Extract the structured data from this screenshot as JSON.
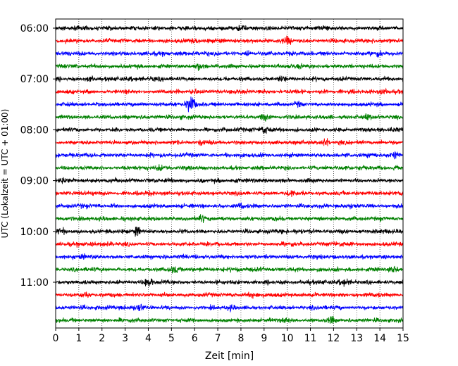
{
  "chart_data": {
    "type": "line",
    "title": "",
    "xlabel": "Zeit  [min]",
    "ylabel": "UTC (Lokalzeit = UTC + 01:00)",
    "xlim": [
      0,
      15
    ],
    "x_ticks": [
      "0",
      "1",
      "2",
      "3",
      "4",
      "5",
      "6",
      "7",
      "8",
      "9",
      "10",
      "11",
      "12",
      "13",
      "14",
      "15"
    ],
    "y_ticks": [
      "06:00",
      "07:00",
      "08:00",
      "09:00",
      "10:00",
      "11:00"
    ],
    "grid": "vertical dotted at each minute",
    "trace_interval_minutes": 15,
    "trace_start": "06:00",
    "trace_end": "11:45",
    "color_cycle": [
      "#000000",
      "#ff0000",
      "#0000ff",
      "#008000"
    ],
    "series": [
      {
        "start": "06:00",
        "color": "#000000",
        "events": [
          {
            "x": 8.0,
            "amp": 1.0
          },
          {
            "x": 11.7,
            "amp": 0.6
          }
        ]
      },
      {
        "start": "06:15",
        "color": "#ff0000",
        "events": [
          {
            "x": 10.0,
            "amp": 1.0
          },
          {
            "x": 6.0,
            "amp": 0.5
          }
        ]
      },
      {
        "start": "06:30",
        "color": "#0000ff",
        "events": [
          {
            "x": 8.3,
            "amp": 0.7
          },
          {
            "x": 14.0,
            "amp": 0.6
          }
        ]
      },
      {
        "start": "06:45",
        "color": "#008000",
        "events": [
          {
            "x": 6.2,
            "amp": 0.8
          },
          {
            "x": 10.5,
            "amp": 0.6
          }
        ]
      },
      {
        "start": "07:00",
        "color": "#000000",
        "events": [
          {
            "x": 9.8,
            "amp": 0.7
          },
          {
            "x": 1.5,
            "amp": 0.5
          }
        ]
      },
      {
        "start": "07:15",
        "color": "#ff0000",
        "events": [
          {
            "x": 14.2,
            "amp": 0.6
          },
          {
            "x": 6.0,
            "amp": 0.5
          }
        ]
      },
      {
        "start": "07:30",
        "color": "#0000ff",
        "events": [
          {
            "x": 5.85,
            "amp": 3.2
          },
          {
            "x": 10.5,
            "amp": 0.6
          }
        ]
      },
      {
        "start": "07:45",
        "color": "#008000",
        "events": [
          {
            "x": 9.0,
            "amp": 1.0
          },
          {
            "x": 13.5,
            "amp": 0.6
          }
        ]
      },
      {
        "start": "08:00",
        "color": "#000000",
        "events": [
          {
            "x": 9.0,
            "amp": 0.9
          },
          {
            "x": 14.5,
            "amp": 0.6
          }
        ]
      },
      {
        "start": "08:15",
        "color": "#ff0000",
        "events": [
          {
            "x": 11.7,
            "amp": 1.0
          },
          {
            "x": 6.3,
            "amp": 0.6
          }
        ]
      },
      {
        "start": "08:30",
        "color": "#0000ff",
        "events": [
          {
            "x": 13.7,
            "amp": 0.8
          },
          {
            "x": 14.7,
            "amp": 0.8
          }
        ]
      },
      {
        "start": "08:45",
        "color": "#008000",
        "events": [
          {
            "x": 4.5,
            "amp": 0.6
          },
          {
            "x": 13.2,
            "amp": 0.6
          }
        ]
      },
      {
        "start": "09:00",
        "color": "#000000",
        "events": [
          {
            "x": 0.3,
            "amp": 0.9
          },
          {
            "x": 2.5,
            "amp": 0.6
          }
        ]
      },
      {
        "start": "09:15",
        "color": "#ff0000",
        "events": [
          {
            "x": 10.2,
            "amp": 1.2
          },
          {
            "x": 4.0,
            "amp": 0.6
          }
        ]
      },
      {
        "start": "09:30",
        "color": "#0000ff",
        "events": [
          {
            "x": 8.0,
            "amp": 0.6
          },
          {
            "x": 12.8,
            "amp": 0.5
          }
        ]
      },
      {
        "start": "09:45",
        "color": "#008000",
        "events": [
          {
            "x": 6.3,
            "amp": 0.8
          },
          {
            "x": 9.5,
            "amp": 0.5
          }
        ]
      },
      {
        "start": "10:00",
        "color": "#000000",
        "events": [
          {
            "x": 3.5,
            "amp": 1.0
          },
          {
            "x": 0.3,
            "amp": 0.8
          }
        ]
      },
      {
        "start": "10:15",
        "color": "#ff0000",
        "events": [
          {
            "x": 2.3,
            "amp": 0.6
          },
          {
            "x": 12.3,
            "amp": 0.6
          }
        ]
      },
      {
        "start": "10:30",
        "color": "#0000ff",
        "events": [
          {
            "x": 1.2,
            "amp": 0.6
          },
          {
            "x": 5.5,
            "amp": 0.6
          }
        ]
      },
      {
        "start": "10:45",
        "color": "#008000",
        "events": [
          {
            "x": 5.1,
            "amp": 1.0
          },
          {
            "x": 14.6,
            "amp": 1.0
          }
        ]
      },
      {
        "start": "11:00",
        "color": "#000000",
        "events": [
          {
            "x": 4.0,
            "amp": 1.2
          },
          {
            "x": 12.5,
            "amp": 0.8
          }
        ]
      },
      {
        "start": "11:15",
        "color": "#ff0000",
        "events": [
          {
            "x": 1.3,
            "amp": 0.9
          },
          {
            "x": 8.5,
            "amp": 0.6
          }
        ]
      },
      {
        "start": "11:30",
        "color": "#0000ff",
        "events": [
          {
            "x": 3.6,
            "amp": 1.1
          },
          {
            "x": 7.5,
            "amp": 0.6
          }
        ]
      },
      {
        "start": "11:45",
        "color": "#008000",
        "events": [
          {
            "x": 10.0,
            "amp": 0.7
          },
          {
            "x": 11.9,
            "amp": 0.8
          }
        ]
      }
    ]
  }
}
